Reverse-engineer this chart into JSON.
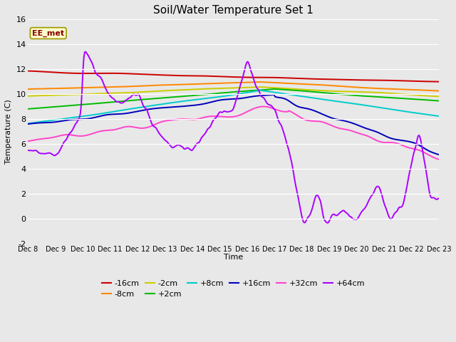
{
  "title": "Soil/Water Temperature Set 1",
  "ylabel": "Temperature (C)",
  "xlabel": "Time",
  "annotation": "EE_met",
  "ylim": [
    -2,
    16
  ],
  "yticks": [
    -2,
    0,
    2,
    4,
    6,
    8,
    10,
    12,
    14,
    16
  ],
  "plot_bg_color": "#e8e8e8",
  "fig_bg_color": "#e8e8e8",
  "series": {
    "-16cm": {
      "color": "#cc0000",
      "lw": 1.4
    },
    "-8cm": {
      "color": "#ff8800",
      "lw": 1.4
    },
    "-2cm": {
      "color": "#cccc00",
      "lw": 1.4
    },
    "+2cm": {
      "color": "#00bb00",
      "lw": 1.4
    },
    "+8cm": {
      "color": "#00cccc",
      "lw": 1.4
    },
    "+16cm": {
      "color": "#0000bb",
      "lw": 1.4
    },
    "+32cm": {
      "color": "#ff44cc",
      "lw": 1.4
    },
    "+64cm": {
      "color": "#aa00ff",
      "lw": 1.4
    }
  },
  "xtick_labels": [
    "Dec 8",
    "Dec 9",
    "Dec 10",
    "Dec 11",
    "Dec 12",
    "Dec 13",
    "Dec 14",
    "Dec 15",
    "Dec 16",
    "Dec 17",
    "Dec 18",
    "Dec 19",
    "Dec 20",
    "Dec 21",
    "Dec 22",
    "Dec 23"
  ],
  "legend_order": [
    "-16cm",
    "-8cm",
    "-2cm",
    "+2cm",
    "+8cm",
    "+16cm",
    "+32cm",
    "+64cm"
  ]
}
